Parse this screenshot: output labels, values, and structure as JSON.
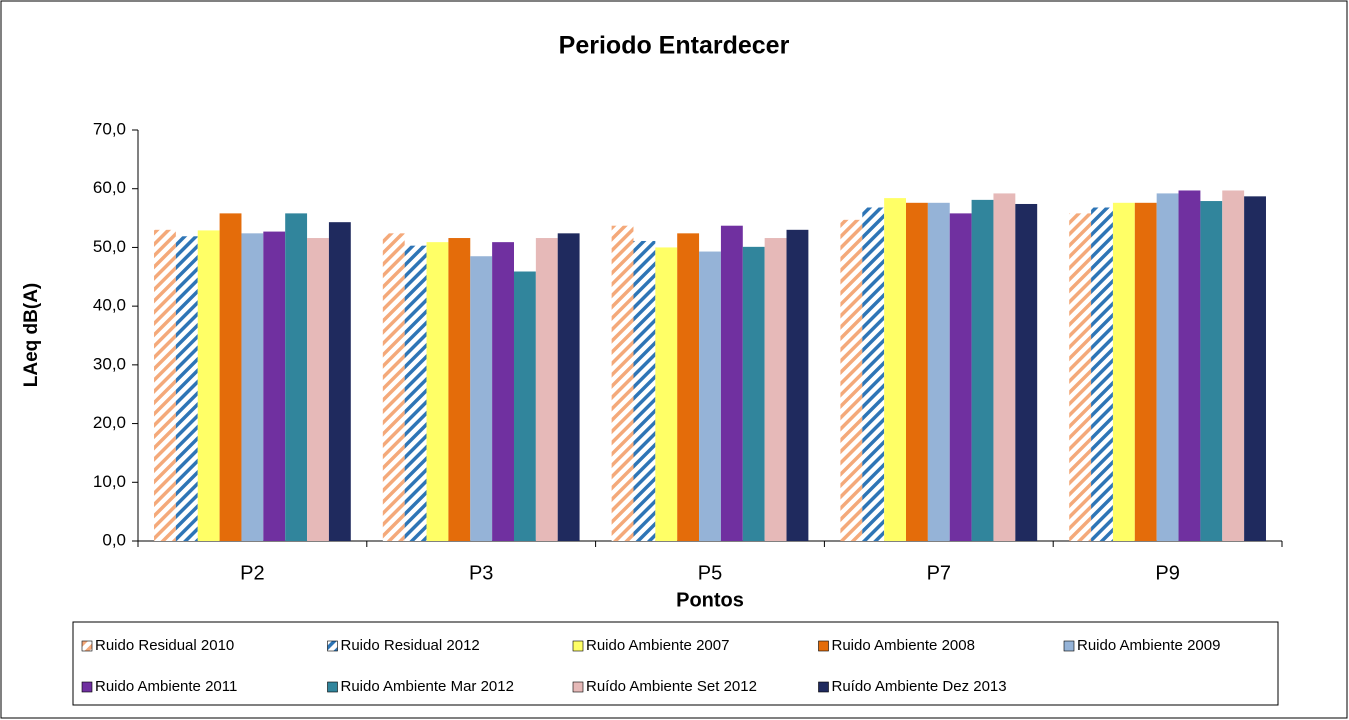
{
  "chart_data": {
    "type": "bar",
    "title": "Periodo Entardecer",
    "xlabel": "Pontos",
    "ylabel": "LAeq dB(A)",
    "categories": [
      "P2",
      "P3",
      "P5",
      "P7",
      "P9"
    ],
    "series": [
      {
        "name": "Ruido Residual 2010",
        "color": "#f4a97a",
        "hatched": true,
        "values": [
          53.0,
          52.4,
          53.7,
          54.7,
          55.8
        ]
      },
      {
        "name": "Ruido Residual 2012",
        "color": "#2e75b6",
        "hatched": true,
        "values": [
          51.9,
          50.3,
          51.1,
          56.8,
          56.8
        ]
      },
      {
        "name": "Ruido Ambiente 2007",
        "color": "#ffff66",
        "values": [
          52.9,
          50.9,
          50.0,
          58.4,
          57.6
        ]
      },
      {
        "name": "Ruido Ambiente 2008",
        "color": "#e46c0a",
        "values": [
          55.8,
          51.6,
          52.4,
          57.6,
          57.6
        ]
      },
      {
        "name": "Ruido Ambiente 2009",
        "color": "#95b3d7",
        "values": [
          52.4,
          48.5,
          49.3,
          57.6,
          59.2
        ]
      },
      {
        "name": "Ruido Ambiente 2011",
        "color": "#7030a0",
        "values": [
          52.7,
          50.9,
          53.7,
          55.8,
          59.7
        ]
      },
      {
        "name": "Ruido Ambiente Mar 2012",
        "color": "#31859c",
        "values": [
          55.8,
          45.9,
          50.1,
          58.1,
          57.9
        ]
      },
      {
        "name": "Ruído Ambiente Set 2012",
        "color": "#e6b9b8",
        "values": [
          51.6,
          51.6,
          51.6,
          59.2,
          59.7
        ]
      },
      {
        "name": "Ruído Ambiente Dez 2013",
        "color": "#1f2a5e",
        "values": [
          54.3,
          52.4,
          53.0,
          57.4,
          58.7
        ]
      }
    ],
    "ylim": [
      0,
      70
    ],
    "yticks": [
      {
        "value": 0,
        "label": "0,0"
      },
      {
        "value": 10,
        "label": "10,0"
      },
      {
        "value": 20,
        "label": "20,0"
      },
      {
        "value": 30,
        "label": "30,0"
      },
      {
        "value": 40,
        "label": "40,0"
      },
      {
        "value": 50,
        "label": "50,0"
      },
      {
        "value": 60,
        "label": "60,0"
      },
      {
        "value": 70,
        "label": "70,0"
      }
    ],
    "legend": "bottom"
  }
}
